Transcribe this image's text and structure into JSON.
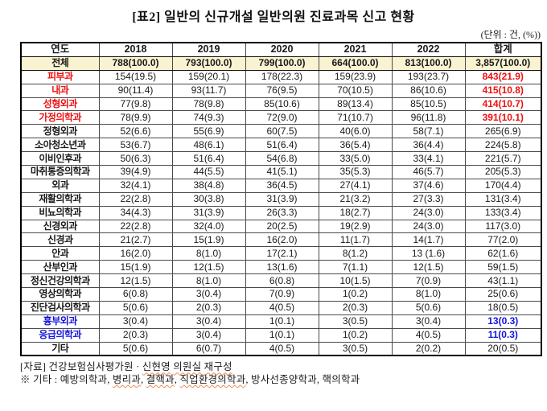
{
  "title": "[표2] 일반의 신규개설 일반의원 진료과목 신고 현황",
  "unit_note": "(단위 : 건, (%))",
  "colors": {
    "highlight_red": "#ee1111",
    "highlight_blue": "#1414dd",
    "total_row_bg": "#faf3d2",
    "spellcheck_underline": "#f08a55"
  },
  "table": {
    "header": [
      "연도",
      "2018",
      "2019",
      "2020",
      "2021",
      "2022",
      "합계"
    ],
    "rows": [
      {
        "label": "전체",
        "style": "total",
        "values": [
          "788(100.0)",
          "793(100.0)",
          "799(100.0)",
          "664(100.0)",
          "813(100.0)",
          "3,857(100.0)"
        ]
      },
      {
        "label": "피부과",
        "style": "red",
        "values": [
          "154(19.5)",
          "159(20.1)",
          "178(22.3)",
          "159(23.9)",
          "193(23.7)",
          "843(21.9)"
        ]
      },
      {
        "label": "내과",
        "style": "red",
        "values": [
          "90(11.4)",
          "93(11.7)",
          "76(9.5)",
          "70(10.5)",
          "86(10.6)",
          "415(10.8)"
        ]
      },
      {
        "label": "성형외과",
        "style": "red",
        "values": [
          "77(9.8)",
          "78(9.8)",
          "85(10.6)",
          "89(13.4)",
          "85(10.5)",
          "414(10.7)"
        ]
      },
      {
        "label": "가정의학과",
        "style": "red",
        "values": [
          "78(9.9)",
          "74(9.3)",
          "72(9.0)",
          "71(10.7)",
          "96(11.8)",
          "391(10.1)"
        ]
      },
      {
        "label": "정형외과",
        "style": "normal",
        "values": [
          "52(6.6)",
          "55(6.9)",
          "60(7.5)",
          "40(6.0)",
          "58(7.1)",
          "265(6.9)"
        ]
      },
      {
        "label": "소아청소년과",
        "style": "normal",
        "values": [
          "53(6.7)",
          "48(6.1)",
          "51(6.4)",
          "36(5.4)",
          "36(4.4)",
          "224(5.8)"
        ]
      },
      {
        "label": "이비인후과",
        "style": "normal",
        "values": [
          "50(6.3)",
          "51(6.4)",
          "54(6.8)",
          "33(5.0)",
          "33(4.1)",
          "221(5.7)"
        ]
      },
      {
        "label": "마취통증의학과",
        "style": "normal",
        "values": [
          "39(4.9)",
          "44(5.5)",
          "41(5.1)",
          "35(5.3)",
          "46(5.7)",
          "205(5.3)"
        ]
      },
      {
        "label": "외과",
        "style": "normal",
        "values": [
          "32(4.1)",
          "38(4.8)",
          "36(4.5)",
          "27(4.1)",
          "37(4.6)",
          "170(4.4)"
        ]
      },
      {
        "label": "재활의학과",
        "style": "normal",
        "values": [
          "22(2.8)",
          "30(3.8)",
          "31(3.9)",
          "21(3.2)",
          "27(3.3)",
          "131(3.4)"
        ]
      },
      {
        "label": "비뇨의학과",
        "style": "normal",
        "values": [
          "34(4.3)",
          "31(3.9)",
          "26(3.3)",
          "18(2.7)",
          "24(3.0)",
          "133(3.4)"
        ]
      },
      {
        "label": "신경외과",
        "style": "normal",
        "values": [
          "22(2.8)",
          "32(4.0)",
          "20(2.5)",
          "19(2.9)",
          "24(3.0)",
          "117(3.0)"
        ]
      },
      {
        "label": "신경과",
        "style": "normal",
        "values": [
          "21(2.7)",
          "15(1.9)",
          "16(2.0)",
          "11(1.7)",
          "14(1.7)",
          "77(2.0)"
        ]
      },
      {
        "label": "안과",
        "style": "normal",
        "values": [
          "16(2.0)",
          "8(1.0)",
          "17(2.1)",
          "8(1.2)",
          "13 (1.6)",
          "62(1.6)"
        ]
      },
      {
        "label": "산부인과",
        "style": "normal",
        "values": [
          "15(1.9)",
          "12(1.5)",
          "13(1.6)",
          "7(1.1)",
          "12(1.5)",
          "59(1.5)"
        ]
      },
      {
        "label": "정신건강의학과",
        "style": "normal",
        "values": [
          "12(1.5)",
          "8(1.0)",
          "6(0.8)",
          "10(1.5)",
          "7(0.9)",
          "43(1.1)"
        ]
      },
      {
        "label": "영상의학과",
        "style": "normal",
        "values": [
          "6(0.8)",
          "3(0.4)",
          "7(0.9)",
          "1(0.2)",
          "8(1.0)",
          "25(0.6)"
        ]
      },
      {
        "label": "진단검사의학과",
        "style": "normal",
        "values": [
          "5(0.6)",
          "2(0.3)",
          "4(0.5)",
          "2(0.3)",
          "5(0.6)",
          "18(0.5)"
        ]
      },
      {
        "label": "흉부외과",
        "style": "blue",
        "values": [
          "3(0.4)",
          "3(0.4)",
          "1(0.1)",
          "3(0.5)",
          "3(0.4)",
          "13(0.3)"
        ]
      },
      {
        "label": "응급의학과",
        "style": "blue",
        "values": [
          "2(0.3)",
          "3(0.4)",
          "1(0.1)",
          "1(0.2)",
          "4(0.5)",
          "11(0.3)"
        ]
      },
      {
        "label": "기타",
        "style": "normal",
        "values": [
          "5(0.6)",
          "6(0.7)",
          "4(0.5)",
          "3(0.5)",
          "2(0.2)",
          "20(0.5)"
        ]
      }
    ]
  },
  "footnotes": {
    "source_line": [
      {
        "text": "[자료] 건강보험심사평가원 · ",
        "underline": false
      },
      {
        "text": "신현영",
        "underline": true
      },
      {
        "text": " ",
        "underline": false
      },
      {
        "text": "의원실",
        "underline": true
      },
      {
        "text": " ",
        "underline": false
      },
      {
        "text": "재구성",
        "underline": true
      }
    ],
    "etc_line": [
      {
        "text": "※ 기타 : 예방의학과, ",
        "underline": false
      },
      {
        "text": "병리과",
        "underline": true
      },
      {
        "text": ", ",
        "underline": false
      },
      {
        "text": "결핵과",
        "underline": true
      },
      {
        "text": ", ",
        "underline": false
      },
      {
        "text": "직업환경의학과",
        "underline": true
      },
      {
        "text": ", 방사선종양학과, 핵의학과",
        "underline": false
      }
    ]
  }
}
